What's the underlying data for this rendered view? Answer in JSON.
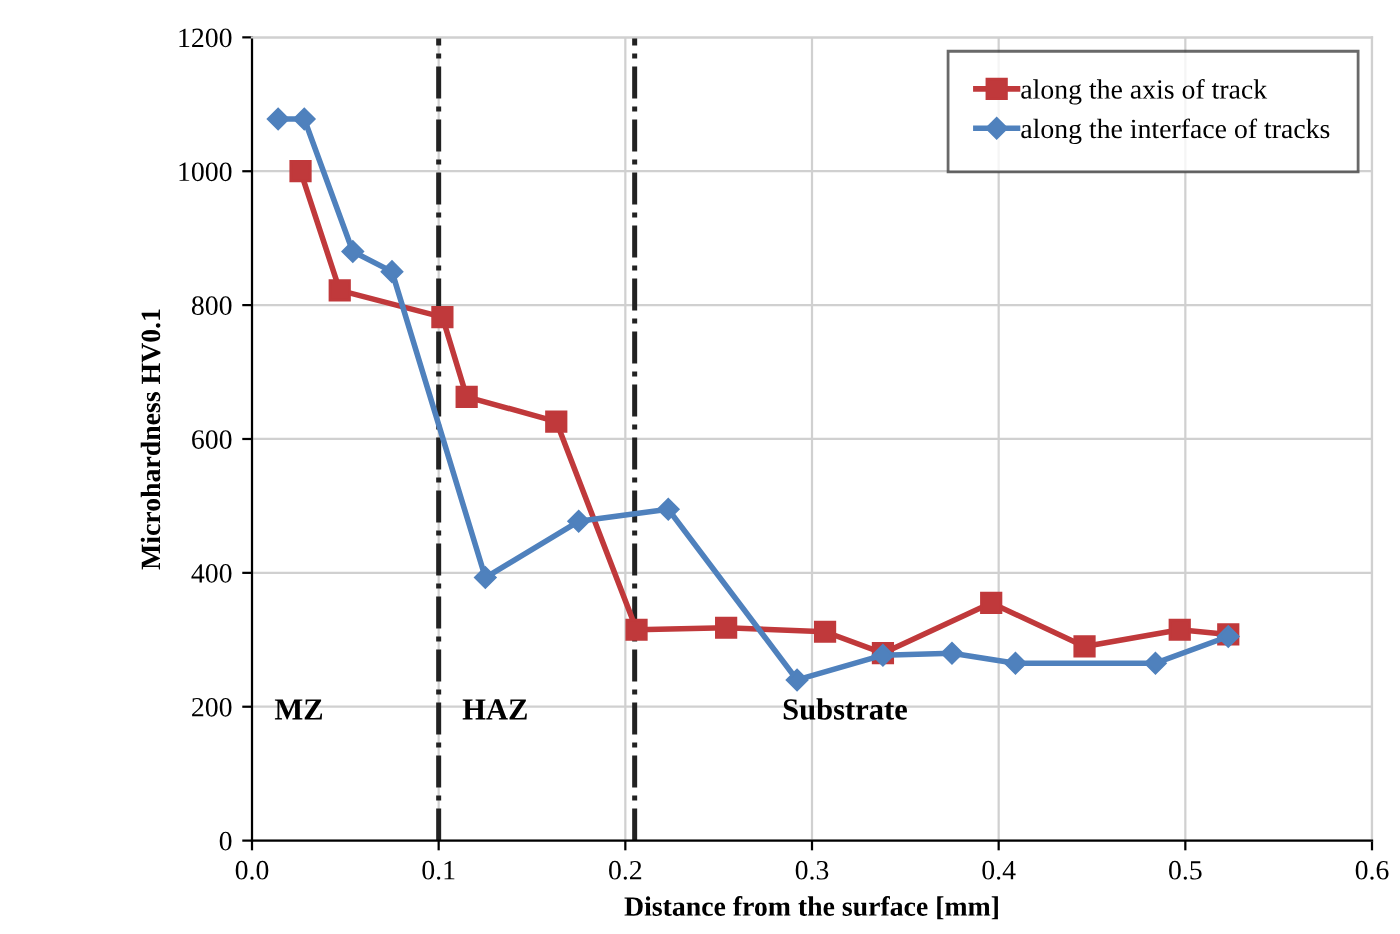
{
  "chart_data": {
    "type": "line",
    "xlabel": "Distance from the surface [mm]",
    "ylabel": "Microhardness HV0.1",
    "xlim": [
      0,
      0.6
    ],
    "xticks": [
      {
        "value": 0,
        "label": "0.0"
      },
      0.1,
      0.2,
      0.3,
      0.4,
      0.5,
      0.6
    ],
    "ylim": [
      0,
      1200
    ],
    "yticks": [
      0,
      200,
      400,
      600,
      800,
      1000,
      1200
    ],
    "grid": true,
    "legend": "top right",
    "series": [
      {
        "name": "along the axis of track",
        "color": "#c0393b",
        "marker": "square",
        "x": [
          0.026,
          0.047,
          0.102,
          0.115,
          0.163,
          0.206,
          0.254,
          0.307,
          0.338,
          0.396,
          0.446,
          0.497,
          0.523
        ],
        "values": [
          1000,
          822,
          782,
          663,
          626,
          315,
          318,
          312,
          280,
          355,
          290,
          315,
          308
        ]
      },
      {
        "name": "along the interface of tracks",
        "color": "#4f81bd",
        "marker": "diamond",
        "x": [
          0.014,
          0.028,
          0.054,
          0.075,
          0.125,
          0.175,
          0.223,
          0.292,
          0.338,
          0.375,
          0.409,
          0.484,
          0.523
        ],
        "values": [
          1078,
          1078,
          880,
          850,
          393,
          477,
          495,
          240,
          277,
          280,
          265,
          265,
          305
        ]
      }
    ],
    "ref_lines": [
      {
        "axis": "x",
        "value": 0.1,
        "color": "#222222",
        "line_style": "dashdot"
      },
      {
        "axis": "x",
        "value": 0.205,
        "color": "#222222",
        "line_style": "dashdot"
      }
    ],
    "annotations": [
      "MZ",
      "HAZ",
      "Substrate"
    ]
  }
}
